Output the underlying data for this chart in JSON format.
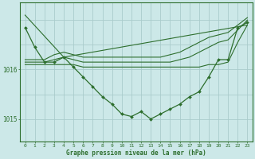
{
  "bg_color": "#cce8e8",
  "grid_color": "#aacccc",
  "line_color": "#2d6e2d",
  "xlabel": "Graphe pression niveau de la mer (hPa)",
  "ylim": [
    1014.55,
    1017.35
  ],
  "xlim": [
    -0.5,
    23.5
  ],
  "yticks": [
    1015,
    1016
  ],
  "xticks": [
    0,
    1,
    2,
    3,
    4,
    5,
    6,
    7,
    8,
    9,
    10,
    11,
    12,
    13,
    14,
    15,
    16,
    17,
    18,
    19,
    20,
    21,
    22,
    23
  ],
  "main_series": [
    1016.85,
    1016.45,
    1016.15,
    1016.15,
    1016.25,
    1016.05,
    1015.85,
    1015.65,
    1015.45,
    1015.3,
    1015.1,
    1015.05,
    1015.15,
    1015.0,
    1015.1,
    1015.2,
    1015.3,
    1015.45,
    1015.55,
    1015.85,
    1016.2,
    1016.2,
    1016.85,
    1016.95
  ],
  "flat_line1": [
    1016.1,
    1016.1,
    1016.1,
    1016.1,
    1016.1,
    1016.1,
    1016.05,
    1016.05,
    1016.05,
    1016.05,
    1016.05,
    1016.05,
    1016.05,
    1016.05,
    1016.05,
    1016.05,
    1016.05,
    1016.05,
    1016.05,
    1016.1,
    1016.1,
    1016.15,
    1016.55,
    1016.9
  ],
  "flat_line2": [
    1016.15,
    1016.15,
    1016.15,
    1016.2,
    1016.25,
    1016.2,
    1016.15,
    1016.15,
    1016.15,
    1016.15,
    1016.15,
    1016.15,
    1016.15,
    1016.15,
    1016.15,
    1016.15,
    1016.2,
    1016.25,
    1016.35,
    1016.45,
    1016.55,
    1016.6,
    1016.8,
    1017.0
  ],
  "flat_line3": [
    1016.2,
    1016.2,
    1016.2,
    1016.3,
    1016.35,
    1016.3,
    1016.25,
    1016.25,
    1016.25,
    1016.25,
    1016.25,
    1016.25,
    1016.25,
    1016.25,
    1016.25,
    1016.3,
    1016.35,
    1016.45,
    1016.55,
    1016.65,
    1016.7,
    1016.75,
    1016.9,
    1017.05
  ],
  "top_line_x": [
    0,
    4,
    23
  ],
  "top_line_y": [
    1017.1,
    1016.25,
    1016.9
  ]
}
